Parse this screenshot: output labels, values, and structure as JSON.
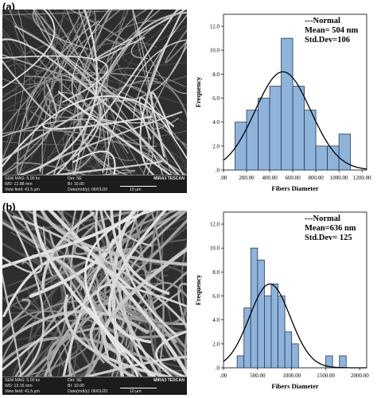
{
  "panels": [
    {
      "label": "(a)",
      "sem_info": {
        "sem_mag": "SEM MAG: 5.00 kx",
        "det": "Det: SE",
        "brand": "MIRA3 TESCAN",
        "wd": "WD: 12.88 mm",
        "bi": "BI: 10.00",
        "view_field": "View field: 41.5 µm",
        "date": "Date(m/d/y): 06/01/20",
        "scale": "10 µm"
      }
    },
    {
      "label": "(b)",
      "sem_info": {
        "sem_mag": "SEM MAG: 5.00 kx",
        "det": "Det: SE",
        "brand": "MIRA3 TESCAN",
        "wd": "WD: 13.15 mm",
        "bi": "BI: 10.00",
        "view_field": "View field: 41.5 µm",
        "date": "Date(m/d/y): 06/01/20",
        "scale": "10 µm"
      }
    }
  ],
  "chart_data": [
    {
      "type": "bar",
      "xlabel": "Fibers Diameter",
      "ylabel": "Frequency",
      "legend_lines": [
        "---Normal",
        "Mean= 504 nm",
        "Std.Dev=106"
      ],
      "x_ticks": [
        ".00",
        "200.00",
        "400.00",
        "600.00",
        "800.00",
        "1000.00",
        "1200.00"
      ],
      "xlim": [
        0,
        1240
      ],
      "y_ticks": [
        ".0",
        "2.0",
        "4.0",
        "6.0",
        "8.0",
        "10.0",
        "12.0"
      ],
      "ylim": [
        0,
        13
      ],
      "bins": [
        {
          "x0": 100,
          "x1": 200,
          "value": 4
        },
        {
          "x0": 200,
          "x1": 300,
          "value": 5
        },
        {
          "x0": 300,
          "x1": 400,
          "value": 6
        },
        {
          "x0": 400,
          "x1": 500,
          "value": 7
        },
        {
          "x0": 500,
          "x1": 600,
          "value": 11
        },
        {
          "x0": 600,
          "x1": 700,
          "value": 7
        },
        {
          "x0": 700,
          "x1": 800,
          "value": 5
        },
        {
          "x0": 800,
          "x1": 900,
          "value": 2
        },
        {
          "x0": 900,
          "x1": 1000,
          "value": 2
        },
        {
          "x0": 1000,
          "x1": 1100,
          "value": 3
        }
      ],
      "curve": {
        "peak": 8.2,
        "center": 515,
        "sd": 240
      },
      "colors": {
        "bar": "#8fb3d9",
        "bar_edge": "#243a63",
        "curve": "#000000"
      }
    },
    {
      "type": "bar",
      "xlabel": "Fibers Diameter",
      "ylabel": "Frequency",
      "legend_lines": [
        "---Normal",
        "Mean=636 nm",
        "Std.Dev= 125"
      ],
      "x_ticks": [
        ".00",
        "500.00",
        "1000.00",
        "1500.00",
        "2000.00"
      ],
      "xlim": [
        0,
        2100
      ],
      "y_ticks": [
        ".0",
        "2.0",
        "4.0",
        "6.0",
        "8.0",
        "10.0",
        "12.0"
      ],
      "ylim": [
        0,
        13
      ],
      "bins": [
        {
          "x0": 200,
          "x1": 300,
          "value": 1
        },
        {
          "x0": 300,
          "x1": 400,
          "value": 5
        },
        {
          "x0": 400,
          "x1": 500,
          "value": 10
        },
        {
          "x0": 500,
          "x1": 600,
          "value": 9
        },
        {
          "x0": 600,
          "x1": 700,
          "value": 6
        },
        {
          "x0": 700,
          "x1": 800,
          "value": 7
        },
        {
          "x0": 800,
          "x1": 900,
          "value": 6
        },
        {
          "x0": 900,
          "x1": 1000,
          "value": 3
        },
        {
          "x0": 1000,
          "x1": 1100,
          "value": 2
        },
        {
          "x0": 1500,
          "x1": 1600,
          "value": 1
        },
        {
          "x0": 1700,
          "x1": 1800,
          "value": 1
        }
      ],
      "curve": {
        "peak": 7.0,
        "center": 680,
        "sd": 300
      },
      "colors": {
        "bar": "#8fb3d9",
        "bar_edge": "#243a63",
        "curve": "#000000"
      }
    }
  ]
}
